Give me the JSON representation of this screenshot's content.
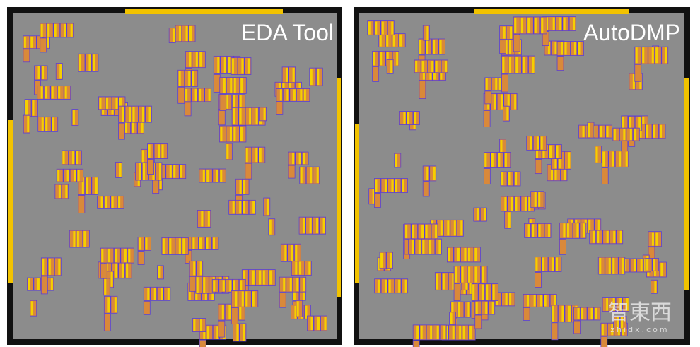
{
  "panels": [
    {
      "title": "EDA Tool"
    },
    {
      "title": "AutoDMP"
    }
  ],
  "watermark": {
    "name": "智東西",
    "url": "zhidx.com"
  }
}
